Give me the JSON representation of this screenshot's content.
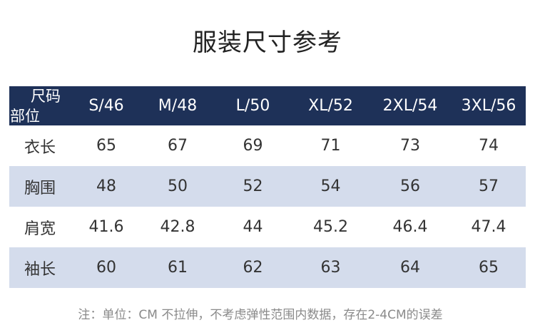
{
  "title": "服装尺寸参考",
  "table": {
    "corner_top": "尺码",
    "corner_bottom": "部位",
    "sizes": [
      "S/46",
      "M/48",
      "L/50",
      "XL/52",
      "2XL/54",
      "3XL/56"
    ],
    "rows": [
      {
        "part": "衣长",
        "values": [
          "65",
          "67",
          "69",
          "71",
          "73",
          "74"
        ]
      },
      {
        "part": "胸围",
        "values": [
          "48",
          "50",
          "52",
          "54",
          "56",
          "57"
        ]
      },
      {
        "part": "肩宽",
        "values": [
          "41.6",
          "42.8",
          "44",
          "45.2",
          "46.4",
          "47.4"
        ]
      },
      {
        "part": "袖长",
        "values": [
          "60",
          "61",
          "62",
          "63",
          "64",
          "65"
        ]
      }
    ],
    "header_color": "#1e3158",
    "stripe_color": "#d4dcec"
  },
  "note": "注：单位：CM  不拉伸，不考虑弹性范围内数据，存在2-4CM的误差"
}
